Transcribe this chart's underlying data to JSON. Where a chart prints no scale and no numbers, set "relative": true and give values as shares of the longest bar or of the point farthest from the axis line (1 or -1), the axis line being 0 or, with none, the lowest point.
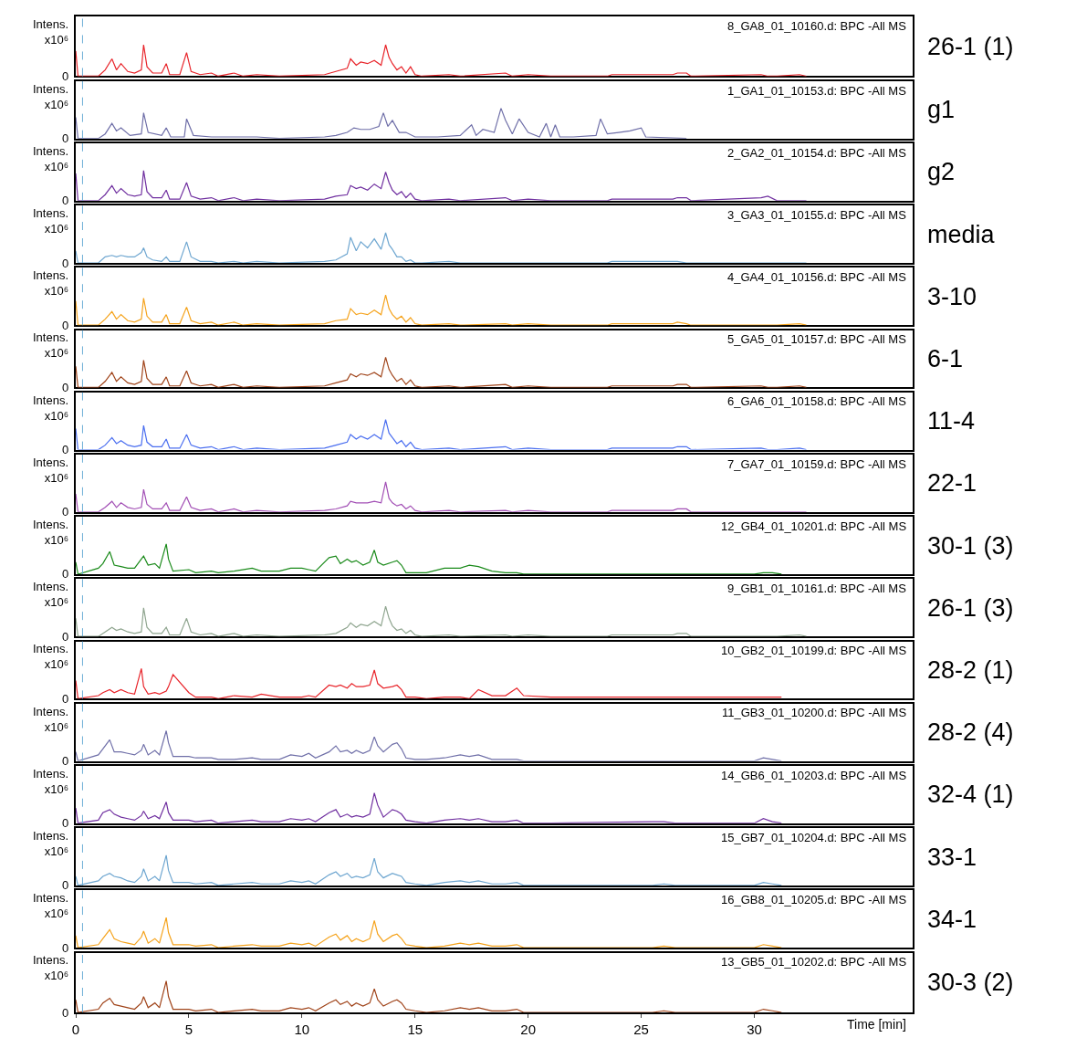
{
  "chart_data": [
    {
      "type": "line",
      "relative": true,
      "title": "8_GA8_01_10160.d: BPC -All MS",
      "ylabel": "Intens.\nx10⁶",
      "xlim": [
        0,
        37
      ],
      "tick_labels": "y",
      "annotations": [
        "26-1 (1)",
        "0"
      ],
      "ref_lines": [
        {
          "axis": "x",
          "value": 0.3,
          "color": "#6baed6",
          "line_style": "dashed"
        }
      ],
      "x": [
        0,
        0.1,
        1.0,
        1.3,
        1.6,
        1.8,
        2.0,
        2.3,
        2.6,
        2.9,
        3.0,
        3.15,
        3.4,
        3.8,
        4.0,
        4.15,
        4.6,
        4.9,
        5.1,
        5.5,
        6.0,
        6.3,
        7.0,
        7.4,
        8.0,
        9.0,
        11.0,
        11.5,
        12.0,
        12.15,
        12.4,
        12.6,
        12.9,
        13.2,
        13.5,
        13.7,
        13.85,
        14.0,
        14.2,
        14.4,
        14.6,
        14.8,
        15.0,
        15.3,
        16.5,
        17.0,
        19.0,
        19.3,
        20.0,
        21.0,
        23.5,
        23.7,
        26.4,
        26.6,
        27.0,
        27.2,
        30.3,
        30.6,
        31.0,
        32.0,
        32.3
      ],
      "series": [
        {
          "color": "#e8242a",
          "values": [
            0.8,
            0,
            0,
            0.2,
            0.55,
            0.2,
            0.4,
            0.15,
            0.1,
            0.2,
            1.0,
            0.3,
            0.1,
            0.1,
            0.4,
            0.05,
            0.05,
            0.75,
            0.15,
            0.05,
            0.1,
            0,
            0.1,
            0,
            0.05,
            0,
            0.05,
            0.15,
            0.25,
            0.55,
            0.35,
            0.45,
            0.4,
            0.5,
            0.35,
            1.0,
            0.6,
            0.4,
            0.2,
            0.3,
            0.1,
            0.3,
            0.05,
            0,
            0.05,
            0,
            0.1,
            0,
            0.05,
            0,
            0,
            0.05,
            0.05,
            0.1,
            0.1,
            0,
            0.05,
            0,
            0,
            0.05,
            0
          ]
        }
      ]
    },
    {
      "type": "line",
      "relative": true,
      "title": "1_GA1_01_10153.d: BPC -All MS",
      "ylabel": "Intens.\nx10⁶",
      "xlim": [
        0,
        37
      ],
      "tick_labels": "y",
      "annotations": [
        "g1",
        "0"
      ],
      "ref_lines": [
        {
          "axis": "x",
          "value": 0.3,
          "color": "#6baed6",
          "line_style": "dashed"
        }
      ],
      "x": [
        0,
        0.1,
        1.0,
        1.3,
        1.6,
        1.8,
        2.0,
        2.4,
        2.9,
        3.0,
        3.2,
        3.8,
        4.0,
        4.2,
        4.8,
        4.9,
        5.2,
        6.0,
        7.0,
        8.0,
        9.0,
        11.0,
        11.5,
        12.0,
        12.3,
        12.6,
        13.0,
        13.4,
        13.6,
        13.8,
        14.0,
        14.3,
        14.6,
        15.0,
        16.0,
        17.0,
        17.5,
        17.7,
        18.0,
        18.5,
        18.8,
        19.0,
        19.3,
        19.6,
        20.0,
        20.5,
        20.8,
        21.0,
        21.2,
        21.4,
        22.0,
        23.0,
        23.2,
        23.5,
        24.0,
        24.5,
        25.0,
        25.2,
        27.0
      ],
      "series": [
        {
          "color": "#6f6fa8",
          "values": [
            0.7,
            0,
            0,
            0.15,
            0.5,
            0.25,
            0.35,
            0.1,
            0.15,
            0.85,
            0.2,
            0.1,
            0.35,
            0.05,
            0.05,
            0.65,
            0.1,
            0.05,
            0.05,
            0.05,
            0,
            0.05,
            0.1,
            0.2,
            0.35,
            0.3,
            0.3,
            0.4,
            0.85,
            0.4,
            0.6,
            0.2,
            0.2,
            0.05,
            0.05,
            0.1,
            0.45,
            0.1,
            0.3,
            0.2,
            1.0,
            0.6,
            0.15,
            0.65,
            0.2,
            0.05,
            0.5,
            0.05,
            0.45,
            0.05,
            0.05,
            0.1,
            0.65,
            0.15,
            0.2,
            0.25,
            0.35,
            0.05,
            0
          ]
        }
      ]
    },
    {
      "type": "line",
      "relative": true,
      "title": "2_GA2_01_10154.d: BPC -All MS",
      "ylabel": "Intens.\nx10⁶",
      "xlim": [
        0,
        37
      ],
      "tick_labels": "y",
      "annotations": [
        "g2",
        "0"
      ],
      "ref_lines": [
        {
          "axis": "x",
          "value": 0.3,
          "color": "#6baed6",
          "line_style": "dashed"
        }
      ],
      "x": [
        0,
        0.1,
        1.0,
        1.3,
        1.6,
        1.8,
        2.0,
        2.3,
        2.6,
        2.9,
        3.0,
        3.15,
        3.4,
        3.8,
        4.0,
        4.15,
        4.6,
        4.9,
        5.1,
        5.5,
        6.0,
        6.3,
        7.0,
        7.4,
        8.0,
        9.0,
        11.0,
        11.5,
        12.0,
        12.15,
        12.4,
        12.6,
        12.9,
        13.2,
        13.5,
        13.7,
        13.85,
        14.0,
        14.2,
        14.4,
        14.6,
        14.8,
        15.0,
        15.3,
        16.5,
        17.0,
        19.0,
        19.3,
        20.0,
        21.0,
        23.5,
        23.7,
        26.4,
        26.6,
        27.0,
        27.2,
        30.3,
        30.6,
        31.0,
        32.0,
        32.3
      ],
      "series": [
        {
          "color": "#7030a0",
          "values": [
            0.9,
            0,
            0,
            0.2,
            0.5,
            0.25,
            0.4,
            0.2,
            0.15,
            0.2,
            1.0,
            0.3,
            0.1,
            0.1,
            0.35,
            0.05,
            0.05,
            0.6,
            0.15,
            0.05,
            0.1,
            0,
            0.1,
            0,
            0.05,
            0,
            0.05,
            0.15,
            0.2,
            0.5,
            0.4,
            0.45,
            0.35,
            0.55,
            0.4,
            0.95,
            0.6,
            0.35,
            0.2,
            0.3,
            0.1,
            0.25,
            0.05,
            0,
            0.05,
            0,
            0.1,
            0,
            0.05,
            0,
            0,
            0.05,
            0.05,
            0.1,
            0.1,
            0,
            0.1,
            0.15,
            0,
            0,
            0
          ]
        }
      ]
    },
    {
      "type": "line",
      "relative": true,
      "title": "3_GA3_01_10155.d: BPC -All MS",
      "ylabel": "Intens.\nx10⁶",
      "xlim": [
        0,
        37
      ],
      "tick_labels": "y",
      "annotations": [
        "media",
        "0"
      ],
      "ref_lines": [
        {
          "axis": "x",
          "value": 0.3,
          "color": "#6baed6",
          "line_style": "dashed"
        }
      ],
      "x": [
        0,
        0.1,
        1.0,
        1.3,
        1.6,
        1.8,
        2.0,
        2.3,
        2.6,
        2.9,
        3.0,
        3.15,
        3.4,
        3.8,
        4.0,
        4.15,
        4.6,
        4.9,
        5.1,
        5.5,
        6.0,
        6.3,
        7.0,
        7.4,
        8.0,
        9.0,
        11.0,
        11.5,
        12.0,
        12.15,
        12.4,
        12.6,
        12.9,
        13.2,
        13.5,
        13.7,
        13.85,
        14.0,
        14.2,
        14.4,
        14.6,
        14.8,
        15.0,
        15.3,
        16.5,
        17.0,
        19.0,
        19.3,
        20.0,
        21.0,
        23.5,
        23.7,
        26.4,
        26.6,
        27.0,
        27.2,
        30.3,
        30.6,
        31.0,
        32.0,
        32.3
      ],
      "series": [
        {
          "color": "#6ea6d0",
          "values": [
            0.4,
            0,
            0,
            0.2,
            0.25,
            0.2,
            0.25,
            0.2,
            0.2,
            0.35,
            0.5,
            0.2,
            0.1,
            0.05,
            0.2,
            0.05,
            0.05,
            0.7,
            0.2,
            0.05,
            0.05,
            0,
            0.05,
            0,
            0.05,
            0,
            0.05,
            0.1,
            0.3,
            0.85,
            0.4,
            0.7,
            0.5,
            0.8,
            0.45,
            1.0,
            0.6,
            0.45,
            0.2,
            0.2,
            0.05,
            0.1,
            0,
            0,
            0.05,
            0,
            0,
            0,
            0,
            0,
            0,
            0.05,
            0.05,
            0.05,
            0,
            0,
            0,
            0,
            0,
            0,
            0
          ]
        }
      ]
    },
    {
      "type": "line",
      "relative": true,
      "title": "4_GA4_01_10156.d: BPC -All MS",
      "ylabel": "Intens.\nx10⁶",
      "xlim": [
        0,
        37
      ],
      "tick_labels": "y",
      "annotations": [
        "3-10",
        "0"
      ],
      "ref_lines": [
        {
          "axis": "x",
          "value": 0.3,
          "color": "#6baed6",
          "line_style": "dashed"
        }
      ],
      "x": [
        0,
        0.1,
        1.0,
        1.3,
        1.6,
        1.8,
        2.0,
        2.3,
        2.6,
        2.9,
        3.0,
        3.15,
        3.4,
        3.8,
        4.0,
        4.15,
        4.6,
        4.9,
        5.1,
        5.5,
        6.0,
        6.3,
        7.0,
        7.4,
        8.0,
        9.0,
        11.0,
        11.5,
        12.0,
        12.15,
        12.4,
        12.6,
        12.9,
        13.2,
        13.5,
        13.7,
        13.85,
        14.0,
        14.2,
        14.4,
        14.6,
        14.8,
        15.0,
        15.3,
        16.5,
        17.0,
        19.0,
        19.3,
        20.0,
        21.0,
        23.5,
        23.7,
        26.4,
        26.6,
        27.0,
        27.2,
        30.3,
        30.6,
        31.0,
        32.0,
        32.3
      ],
      "series": [
        {
          "color": "#f5a31c",
          "values": [
            0.8,
            0,
            0,
            0.2,
            0.45,
            0.2,
            0.35,
            0.15,
            0.1,
            0.2,
            0.9,
            0.3,
            0.1,
            0.1,
            0.35,
            0.05,
            0.05,
            0.6,
            0.15,
            0.05,
            0.1,
            0,
            0.1,
            0,
            0.05,
            0,
            0.05,
            0.15,
            0.2,
            0.55,
            0.35,
            0.4,
            0.35,
            0.5,
            0.35,
            1.0,
            0.55,
            0.35,
            0.2,
            0.3,
            0.1,
            0.25,
            0.05,
            0,
            0.05,
            0,
            0.05,
            0,
            0.05,
            0,
            0,
            0.05,
            0.05,
            0.1,
            0.05,
            0,
            0,
            0,
            0,
            0.05,
            0
          ]
        }
      ]
    },
    {
      "type": "line",
      "relative": true,
      "title": "5_GA5_01_10157.d: BPC -All MS",
      "ylabel": "Intens.\nx10⁶",
      "xlim": [
        0,
        37
      ],
      "tick_labels": "y",
      "annotations": [
        "6-1",
        "0"
      ],
      "ref_lines": [
        {
          "axis": "x",
          "value": 0.3,
          "color": "#6baed6",
          "line_style": "dashed"
        }
      ],
      "x": [
        0,
        0.1,
        1.0,
        1.3,
        1.6,
        1.8,
        2.0,
        2.3,
        2.6,
        2.9,
        3.0,
        3.15,
        3.4,
        3.8,
        4.0,
        4.15,
        4.6,
        4.9,
        5.1,
        5.5,
        6.0,
        6.3,
        7.0,
        7.4,
        8.0,
        9.0,
        11.0,
        11.5,
        12.0,
        12.15,
        12.4,
        12.6,
        12.9,
        13.2,
        13.5,
        13.7,
        13.85,
        14.0,
        14.2,
        14.4,
        14.6,
        14.8,
        15.0,
        15.3,
        16.5,
        17.0,
        19.0,
        19.3,
        20.0,
        21.0,
        23.5,
        23.7,
        26.4,
        26.6,
        27.0,
        27.2,
        30.3,
        30.6,
        31.0,
        32.0,
        32.3
      ],
      "series": [
        {
          "color": "#a0441a",
          "values": [
            0.7,
            0,
            0,
            0.2,
            0.5,
            0.2,
            0.35,
            0.15,
            0.1,
            0.2,
            0.9,
            0.3,
            0.1,
            0.1,
            0.35,
            0.05,
            0.05,
            0.55,
            0.15,
            0.05,
            0.1,
            0,
            0.1,
            0,
            0.05,
            0,
            0.05,
            0.15,
            0.25,
            0.45,
            0.35,
            0.45,
            0.4,
            0.5,
            0.35,
            1.0,
            0.6,
            0.4,
            0.2,
            0.3,
            0.1,
            0.25,
            0.05,
            0,
            0.05,
            0,
            0.1,
            0,
            0.05,
            0,
            0,
            0.05,
            0.05,
            0.1,
            0.1,
            0,
            0.05,
            0,
            0,
            0.05,
            0
          ]
        }
      ]
    },
    {
      "type": "line",
      "relative": true,
      "title": "6_GA6_01_10158.d: BPC -All MS",
      "ylabel": "Intens.\nx10⁶",
      "xlim": [
        0,
        37
      ],
      "tick_labels": "y",
      "annotations": [
        "11-4",
        "0"
      ],
      "ref_lines": [
        {
          "axis": "x",
          "value": 0.3,
          "color": "#6baed6",
          "line_style": "dashed"
        }
      ],
      "x": [
        0,
        0.1,
        1.0,
        1.3,
        1.6,
        1.8,
        2.0,
        2.3,
        2.6,
        2.9,
        3.0,
        3.15,
        3.4,
        3.8,
        4.0,
        4.15,
        4.6,
        4.9,
        5.1,
        5.5,
        6.0,
        6.3,
        7.0,
        7.4,
        8.0,
        9.0,
        11.0,
        11.5,
        12.0,
        12.15,
        12.4,
        12.6,
        12.9,
        13.2,
        13.5,
        13.7,
        13.85,
        14.0,
        14.2,
        14.4,
        14.6,
        14.8,
        15.0,
        15.3,
        16.5,
        17.0,
        19.0,
        19.3,
        20.0,
        21.0,
        23.5,
        23.7,
        26.4,
        26.6,
        27.0,
        27.2,
        30.3,
        30.6,
        31.0,
        32.0,
        32.3
      ],
      "series": [
        {
          "color": "#4a6ef0",
          "values": [
            0.7,
            0,
            0,
            0.15,
            0.4,
            0.2,
            0.3,
            0.15,
            0.1,
            0.15,
            0.8,
            0.25,
            0.1,
            0.1,
            0.35,
            0.05,
            0.05,
            0.5,
            0.15,
            0.05,
            0.1,
            0,
            0.1,
            0,
            0.05,
            0,
            0.05,
            0.15,
            0.25,
            0.5,
            0.35,
            0.45,
            0.35,
            0.5,
            0.35,
            1.0,
            0.55,
            0.4,
            0.2,
            0.3,
            0.1,
            0.25,
            0.05,
            0,
            0.05,
            0,
            0.1,
            0,
            0.05,
            0,
            0,
            0.05,
            0.05,
            0.1,
            0.1,
            0,
            0.05,
            0,
            0,
            0.05,
            0
          ]
        }
      ]
    },
    {
      "type": "line",
      "relative": true,
      "title": "7_GA7_01_10159.d: BPC -All MS",
      "ylabel": "Intens.\nx10⁶",
      "xlim": [
        0,
        37
      ],
      "tick_labels": "y",
      "annotations": [
        "22-1",
        "0"
      ],
      "ref_lines": [
        {
          "axis": "x",
          "value": 0.3,
          "color": "#6baed6",
          "line_style": "dashed"
        }
      ],
      "x": [
        0,
        0.1,
        1.0,
        1.3,
        1.6,
        1.8,
        2.0,
        2.3,
        2.6,
        2.9,
        3.0,
        3.15,
        3.4,
        3.8,
        4.0,
        4.15,
        4.6,
        4.9,
        5.1,
        5.5,
        6.0,
        6.3,
        7.0,
        7.4,
        8.0,
        9.0,
        11.0,
        11.5,
        12.0,
        12.15,
        12.4,
        12.6,
        12.9,
        13.2,
        13.5,
        13.7,
        13.85,
        14.0,
        14.2,
        14.4,
        14.6,
        14.8,
        15.0,
        15.3,
        16.5,
        17.0,
        19.0,
        19.3,
        20.0,
        21.0,
        23.5,
        23.7,
        26.4,
        26.6,
        27.0,
        27.2,
        30.3,
        30.6,
        31.0,
        32.0,
        32.3
      ],
      "series": [
        {
          "color": "#a24fb5",
          "values": [
            0.6,
            0,
            0,
            0.15,
            0.35,
            0.15,
            0.3,
            0.15,
            0.1,
            0.15,
            0.75,
            0.25,
            0.1,
            0.1,
            0.3,
            0.05,
            0.05,
            0.5,
            0.15,
            0.05,
            0.1,
            0,
            0.1,
            0,
            0.05,
            0,
            0.05,
            0.1,
            0.2,
            0.35,
            0.3,
            0.3,
            0.3,
            0.35,
            0.3,
            1.0,
            0.45,
            0.3,
            0.2,
            0.25,
            0.1,
            0.2,
            0.05,
            0,
            0.05,
            0,
            0.05,
            0,
            0.05,
            0,
            0,
            0.05,
            0.05,
            0.1,
            0.1,
            0,
            0,
            0,
            0,
            0,
            0
          ]
        }
      ]
    },
    {
      "type": "line",
      "relative": true,
      "title": "12_GB4_01_10201.d: BPC -All MS",
      "ylabel": "Intens.\nx10⁶",
      "xlim": [
        0,
        37
      ],
      "tick_labels": "y",
      "annotations": [
        "30-1 (3)",
        "0"
      ],
      "ref_lines": [
        {
          "axis": "x",
          "value": 0.3,
          "color": "#6baed6",
          "line_style": "dashed"
        }
      ],
      "x": [
        0,
        0.1,
        1.0,
        1.2,
        1.5,
        1.7,
        2.0,
        2.3,
        2.6,
        2.9,
        3.0,
        3.2,
        3.5,
        3.7,
        4.0,
        4.1,
        4.3,
        5.0,
        5.3,
        6.0,
        6.3,
        7.0,
        7.8,
        8.2,
        9.0,
        9.5,
        10.0,
        10.3,
        10.6,
        11.2,
        11.5,
        11.7,
        12.0,
        12.2,
        12.4,
        12.7,
        13.0,
        13.2,
        13.35,
        13.6,
        14.0,
        14.2,
        14.4,
        14.6,
        15.0,
        15.5,
        16.3,
        17.0,
        17.4,
        17.8,
        18.4,
        19.0,
        19.5,
        19.8,
        21.0,
        25.5,
        26.0,
        26.5,
        30.0,
        30.4,
        30.8,
        31.2
      ],
      "series": [
        {
          "color": "#1a8a1a",
          "values": [
            0.4,
            0,
            0.2,
            0.35,
            0.75,
            0.3,
            0.25,
            0.2,
            0.2,
            0.5,
            0.6,
            0.3,
            0.35,
            0.2,
            1.0,
            0.5,
            0.1,
            0.15,
            0.05,
            0.1,
            0.05,
            0.1,
            0.2,
            0.1,
            0.1,
            0.2,
            0.2,
            0.15,
            0.1,
            0.55,
            0.6,
            0.35,
            0.5,
            0.4,
            0.45,
            0.3,
            0.4,
            0.8,
            0.4,
            0.3,
            0.4,
            0.45,
            0.3,
            0.05,
            0.05,
            0.05,
            0.2,
            0.2,
            0.3,
            0.25,
            0.1,
            0.05,
            0.05,
            0,
            0,
            0,
            0,
            0,
            0,
            0.05,
            0.05,
            0
          ]
        }
      ]
    },
    {
      "type": "line",
      "relative": true,
      "title": "9_GB1_01_10161.d: BPC -All MS",
      "ylabel": "Intens.\nx10⁶",
      "xlim": [
        0,
        37
      ],
      "tick_labels": "y",
      "annotations": [
        "26-1 (3)",
        "0"
      ],
      "ref_lines": [
        {
          "axis": "x",
          "value": 0.3,
          "color": "#6baed6",
          "line_style": "dashed"
        }
      ],
      "x": [
        0,
        0.1,
        1.0,
        1.3,
        1.6,
        1.8,
        2.0,
        2.3,
        2.6,
        2.9,
        3.0,
        3.15,
        3.4,
        3.8,
        4.0,
        4.15,
        4.6,
        4.9,
        5.1,
        5.5,
        6.0,
        6.3,
        7.0,
        7.4,
        8.0,
        9.0,
        11.0,
        11.5,
        12.0,
        12.15,
        12.4,
        12.6,
        12.9,
        13.2,
        13.5,
        13.7,
        13.85,
        14.0,
        14.2,
        14.4,
        14.6,
        14.8,
        15.0,
        15.3,
        16.5,
        17.0,
        19.0,
        19.3,
        20.0,
        21.0,
        23.5,
        23.7,
        26.4,
        26.6,
        27.0,
        27.2,
        30.3,
        30.6,
        31.0,
        32.0,
        32.3
      ],
      "series": [
        {
          "color": "#8fa58f",
          "values": [
            0.6,
            0,
            0,
            0.15,
            0.3,
            0.2,
            0.25,
            0.15,
            0.1,
            0.15,
            0.95,
            0.3,
            0.1,
            0.1,
            0.3,
            0.05,
            0.05,
            0.6,
            0.15,
            0.05,
            0.1,
            0,
            0.1,
            0,
            0.05,
            0,
            0.05,
            0.1,
            0.3,
            0.45,
            0.3,
            0.4,
            0.35,
            0.5,
            0.35,
            1.0,
            0.6,
            0.35,
            0.2,
            0.25,
            0.1,
            0.2,
            0.05,
            0,
            0.05,
            0,
            0.05,
            0,
            0.05,
            0,
            0,
            0.05,
            0.05,
            0.1,
            0.1,
            0,
            0,
            0,
            0,
            0.05,
            0
          ]
        }
      ]
    },
    {
      "type": "line",
      "relative": true,
      "title": "10_GB2_01_10199.d: BPC -All MS",
      "ylabel": "Intens.\nx10⁶",
      "xlim": [
        0,
        37
      ],
      "tick_labels": "y",
      "annotations": [
        "28-2 (1)",
        "0"
      ],
      "ref_lines": [
        {
          "axis": "x",
          "value": 0.3,
          "color": "#6baed6",
          "line_style": "dashed"
        }
      ],
      "x": [
        0,
        0.1,
        1.0,
        1.2,
        1.5,
        1.7,
        2.0,
        2.3,
        2.6,
        2.9,
        3.0,
        3.2,
        3.5,
        3.7,
        4.0,
        4.1,
        4.3,
        5.0,
        5.3,
        6.0,
        6.3,
        7.0,
        7.8,
        8.2,
        9.0,
        9.5,
        10.0,
        10.3,
        10.6,
        11.2,
        11.5,
        11.7,
        12.0,
        12.2,
        12.4,
        12.7,
        13.0,
        13.2,
        13.35,
        13.6,
        14.0,
        14.2,
        14.4,
        14.6,
        15.0,
        15.5,
        16.3,
        17.0,
        17.4,
        17.8,
        18.4,
        19.0,
        19.5,
        19.8,
        21.0,
        25.5,
        26.0,
        26.5,
        30.0,
        30.4,
        30.8,
        31.2
      ],
      "series": [
        {
          "color": "#e8242a",
          "values": [
            0.6,
            0,
            0.1,
            0.2,
            0.3,
            0.2,
            0.3,
            0.2,
            0.15,
            1.0,
            0.4,
            0.15,
            0.2,
            0.15,
            0.25,
            0.4,
            0.8,
            0.2,
            0.05,
            0.05,
            0,
            0.1,
            0.05,
            0.15,
            0.05,
            0.05,
            0.05,
            0.1,
            0.05,
            0.45,
            0.4,
            0.45,
            0.35,
            0.5,
            0.4,
            0.4,
            0.45,
            0.95,
            0.5,
            0.35,
            0.4,
            0.45,
            0.3,
            0.05,
            0.05,
            0,
            0.05,
            0.05,
            0,
            0.3,
            0.1,
            0.1,
            0.35,
            0.1,
            0.05,
            0.05,
            0.05,
            0.05,
            0.05,
            0.05,
            0.05,
            0.05
          ]
        }
      ]
    },
    {
      "type": "line",
      "relative": true,
      "title": "11_GB3_01_10200.d: BPC -All MS",
      "ylabel": "Intens.\nx10⁶",
      "xlim": [
        0,
        37
      ],
      "tick_labels": "y",
      "annotations": [
        "28-2 (4)",
        "0"
      ],
      "ref_lines": [
        {
          "axis": "x",
          "value": 0.3,
          "color": "#6baed6",
          "line_style": "dashed"
        }
      ],
      "x": [
        0,
        0.1,
        1.0,
        1.2,
        1.5,
        1.7,
        2.0,
        2.3,
        2.6,
        2.9,
        3.0,
        3.2,
        3.5,
        3.7,
        4.0,
        4.1,
        4.3,
        5.0,
        5.3,
        6.0,
        6.3,
        7.0,
        7.8,
        8.2,
        9.0,
        9.5,
        10.0,
        10.3,
        10.6,
        11.2,
        11.5,
        11.7,
        12.0,
        12.2,
        12.4,
        12.7,
        13.0,
        13.2,
        13.35,
        13.6,
        14.0,
        14.2,
        14.4,
        14.6,
        15.0,
        15.5,
        16.3,
        17.0,
        17.4,
        17.8,
        18.4,
        19.0,
        19.5,
        19.8,
        21.0,
        25.5,
        26.0,
        26.5,
        30.0,
        30.4,
        30.8,
        31.2
      ],
      "series": [
        {
          "color": "#6f6fa8",
          "values": [
            0.3,
            0,
            0.2,
            0.4,
            0.7,
            0.3,
            0.3,
            0.25,
            0.2,
            0.35,
            0.55,
            0.2,
            0.35,
            0.2,
            1.0,
            0.6,
            0.15,
            0.15,
            0.1,
            0.1,
            0.05,
            0.05,
            0.1,
            0.05,
            0.05,
            0.2,
            0.15,
            0.25,
            0.1,
            0.3,
            0.5,
            0.3,
            0.35,
            0.25,
            0.35,
            0.25,
            0.35,
            0.8,
            0.5,
            0.3,
            0.55,
            0.6,
            0.4,
            0.1,
            0.05,
            0.05,
            0.1,
            0.2,
            0.15,
            0.2,
            0.05,
            0.05,
            0.05,
            0,
            0,
            0,
            0,
            0,
            0,
            0.1,
            0.05,
            0
          ]
        }
      ]
    },
    {
      "type": "line",
      "relative": true,
      "title": "14_GB6_01_10203.d: BPC -All MS",
      "ylabel": "Intens.\nx10⁶",
      "xlim": [
        0,
        37
      ],
      "tick_labels": "y",
      "annotations": [
        "32-4 (1)",
        "0"
      ],
      "ref_lines": [
        {
          "axis": "x",
          "value": 0.3,
          "color": "#6baed6",
          "line_style": "dashed"
        }
      ],
      "x": [
        0,
        0.1,
        1.0,
        1.2,
        1.5,
        1.7,
        2.0,
        2.3,
        2.6,
        2.9,
        3.0,
        3.2,
        3.5,
        3.7,
        4.0,
        4.1,
        4.3,
        5.0,
        5.3,
        6.0,
        6.3,
        7.0,
        7.8,
        8.2,
        9.0,
        9.5,
        10.0,
        10.3,
        10.6,
        11.2,
        11.5,
        11.7,
        12.0,
        12.2,
        12.4,
        12.7,
        13.0,
        13.2,
        13.35,
        13.6,
        14.0,
        14.2,
        14.4,
        14.6,
        15.0,
        15.5,
        16.3,
        17.0,
        17.4,
        17.8,
        18.4,
        19.0,
        19.5,
        19.8,
        21.0,
        25.5,
        26.0,
        26.5,
        30.0,
        30.4,
        30.8,
        31.2
      ],
      "series": [
        {
          "color": "#7030a0",
          "values": [
            0.5,
            0,
            0.1,
            0.35,
            0.45,
            0.3,
            0.2,
            0.15,
            0.1,
            0.25,
            0.4,
            0.15,
            0.25,
            0.15,
            0.7,
            0.35,
            0.1,
            0.1,
            0.05,
            0.1,
            0,
            0.05,
            0.1,
            0.05,
            0.05,
            0.15,
            0.1,
            0.15,
            0.05,
            0.35,
            0.45,
            0.2,
            0.3,
            0.2,
            0.25,
            0.2,
            0.3,
            1.0,
            0.6,
            0.2,
            0.45,
            0.4,
            0.3,
            0.1,
            0.05,
            0,
            0.1,
            0.15,
            0.1,
            0.15,
            0.05,
            0.05,
            0.1,
            0,
            0,
            0.05,
            0.05,
            0,
            0,
            0.15,
            0.05,
            0
          ]
        }
      ]
    },
    {
      "type": "line",
      "relative": true,
      "title": "15_GB7_01_10204.d: BPC -All MS",
      "ylabel": "Intens.\nx10⁶",
      "xlim": [
        0,
        37
      ],
      "tick_labels": "y",
      "annotations": [
        "33-1",
        "0"
      ],
      "ref_lines": [
        {
          "axis": "x",
          "value": 0.3,
          "color": "#6baed6",
          "line_style": "dashed"
        }
      ],
      "x": [
        0,
        0.1,
        1.0,
        1.2,
        1.5,
        1.7,
        2.0,
        2.3,
        2.6,
        2.9,
        3.0,
        3.2,
        3.5,
        3.7,
        4.0,
        4.1,
        4.3,
        5.0,
        5.3,
        6.0,
        6.3,
        7.0,
        7.8,
        8.2,
        9.0,
        9.5,
        10.0,
        10.3,
        10.6,
        11.2,
        11.5,
        11.7,
        12.0,
        12.2,
        12.4,
        12.7,
        13.0,
        13.2,
        13.35,
        13.6,
        14.0,
        14.2,
        14.4,
        14.6,
        15.0,
        15.5,
        16.3,
        17.0,
        17.4,
        17.8,
        18.4,
        19.0,
        19.5,
        19.8,
        21.0,
        25.5,
        26.0,
        26.5,
        30.0,
        30.4,
        30.8,
        31.2
      ],
      "series": [
        {
          "color": "#6ea6d0",
          "values": [
            0.3,
            0,
            0.15,
            0.3,
            0.4,
            0.3,
            0.25,
            0.15,
            0.1,
            0.3,
            0.55,
            0.15,
            0.3,
            0.15,
            1.0,
            0.5,
            0.1,
            0.1,
            0.05,
            0.1,
            0,
            0.05,
            0.1,
            0.05,
            0.05,
            0.15,
            0.1,
            0.15,
            0.05,
            0.35,
            0.45,
            0.3,
            0.4,
            0.25,
            0.3,
            0.25,
            0.35,
            0.9,
            0.45,
            0.25,
            0.4,
            0.35,
            0.3,
            0.1,
            0.05,
            0,
            0.1,
            0.15,
            0.1,
            0.15,
            0.05,
            0.05,
            0.1,
            0,
            0,
            0,
            0.05,
            0,
            0,
            0.1,
            0.05,
            0
          ]
        }
      ]
    },
    {
      "type": "line",
      "relative": true,
      "title": "16_GB8_01_10205.d: BPC -All MS",
      "ylabel": "Intens.\nx10⁶",
      "xlim": [
        0,
        37
      ],
      "tick_labels": "y",
      "annotations": [
        "34-1",
        "0"
      ],
      "ref_lines": [
        {
          "axis": "x",
          "value": 0.3,
          "color": "#6baed6",
          "line_style": "dashed"
        }
      ],
      "x": [
        0,
        0.1,
        1.0,
        1.2,
        1.5,
        1.7,
        2.0,
        2.3,
        2.6,
        2.9,
        3.0,
        3.2,
        3.5,
        3.7,
        4.0,
        4.1,
        4.3,
        5.0,
        5.3,
        6.0,
        6.3,
        7.0,
        7.8,
        8.2,
        9.0,
        9.5,
        10.0,
        10.3,
        10.6,
        11.2,
        11.5,
        11.7,
        12.0,
        12.2,
        12.4,
        12.7,
        13.0,
        13.2,
        13.35,
        13.6,
        14.0,
        14.2,
        14.4,
        14.6,
        15.0,
        15.5,
        16.3,
        17.0,
        17.4,
        17.8,
        18.4,
        19.0,
        19.5,
        19.8,
        21.0,
        25.5,
        26.0,
        26.5,
        30.0,
        30.4,
        30.8,
        31.2
      ],
      "series": [
        {
          "color": "#f5a31c",
          "values": [
            0.4,
            0,
            0.1,
            0.3,
            0.6,
            0.3,
            0.2,
            0.15,
            0.1,
            0.35,
            0.55,
            0.15,
            0.3,
            0.15,
            1.0,
            0.5,
            0.1,
            0.1,
            0.05,
            0.1,
            0,
            0.05,
            0.1,
            0.05,
            0.05,
            0.15,
            0.1,
            0.15,
            0.05,
            0.35,
            0.45,
            0.25,
            0.4,
            0.2,
            0.3,
            0.2,
            0.3,
            0.9,
            0.45,
            0.2,
            0.4,
            0.45,
            0.3,
            0.1,
            0.05,
            0,
            0.05,
            0.15,
            0.1,
            0.15,
            0.05,
            0.05,
            0.1,
            0,
            0,
            0,
            0.05,
            0,
            0,
            0.1,
            0.05,
            0
          ]
        }
      ]
    },
    {
      "type": "line",
      "relative": true,
      "title": "13_GB5_01_10202.d: BPC -All MS",
      "ylabel": "Intens.\nx10⁶",
      "xlim": [
        0,
        37
      ],
      "xticks": [
        0,
        5,
        10,
        15,
        20,
        25,
        30
      ],
      "xlabel": "Time [min]",
      "tick_labels": "x",
      "annotations": [
        "30-3 (2)",
        "0"
      ],
      "ref_lines": [
        {
          "axis": "x",
          "value": 0.3,
          "color": "#6baed6",
          "line_style": "dashed"
        }
      ],
      "x": [
        0,
        0.1,
        1.0,
        1.2,
        1.5,
        1.7,
        2.0,
        2.3,
        2.6,
        2.9,
        3.0,
        3.2,
        3.5,
        3.7,
        4.0,
        4.1,
        4.3,
        5.0,
        5.3,
        6.0,
        6.3,
        7.0,
        7.8,
        8.2,
        9.0,
        9.5,
        10.0,
        10.3,
        10.6,
        11.2,
        11.5,
        11.7,
        12.0,
        12.2,
        12.4,
        12.7,
        13.0,
        13.2,
        13.35,
        13.6,
        14.0,
        14.2,
        14.4,
        14.6,
        15.0,
        15.5,
        16.3,
        17.0,
        17.4,
        17.8,
        18.4,
        19.0,
        19.5,
        19.8,
        21.0,
        25.5,
        26.0,
        26.5,
        30.0,
        30.4,
        30.8,
        31.2
      ],
      "series": [
        {
          "color": "#a0441a",
          "values": [
            0.4,
            0,
            0.1,
            0.3,
            0.45,
            0.25,
            0.2,
            0.15,
            0.1,
            0.3,
            0.5,
            0.15,
            0.3,
            0.15,
            1.0,
            0.5,
            0.1,
            0.1,
            0.05,
            0.1,
            0,
            0.05,
            0.1,
            0.05,
            0.05,
            0.15,
            0.1,
            0.15,
            0.05,
            0.3,
            0.4,
            0.25,
            0.35,
            0.2,
            0.3,
            0.2,
            0.3,
            0.75,
            0.4,
            0.2,
            0.35,
            0.4,
            0.3,
            0.1,
            0.05,
            0,
            0.05,
            0.15,
            0.1,
            0.15,
            0.05,
            0.05,
            0.1,
            0,
            0,
            0,
            0.05,
            0,
            0,
            0.1,
            0.05,
            0
          ]
        }
      ]
    }
  ]
}
